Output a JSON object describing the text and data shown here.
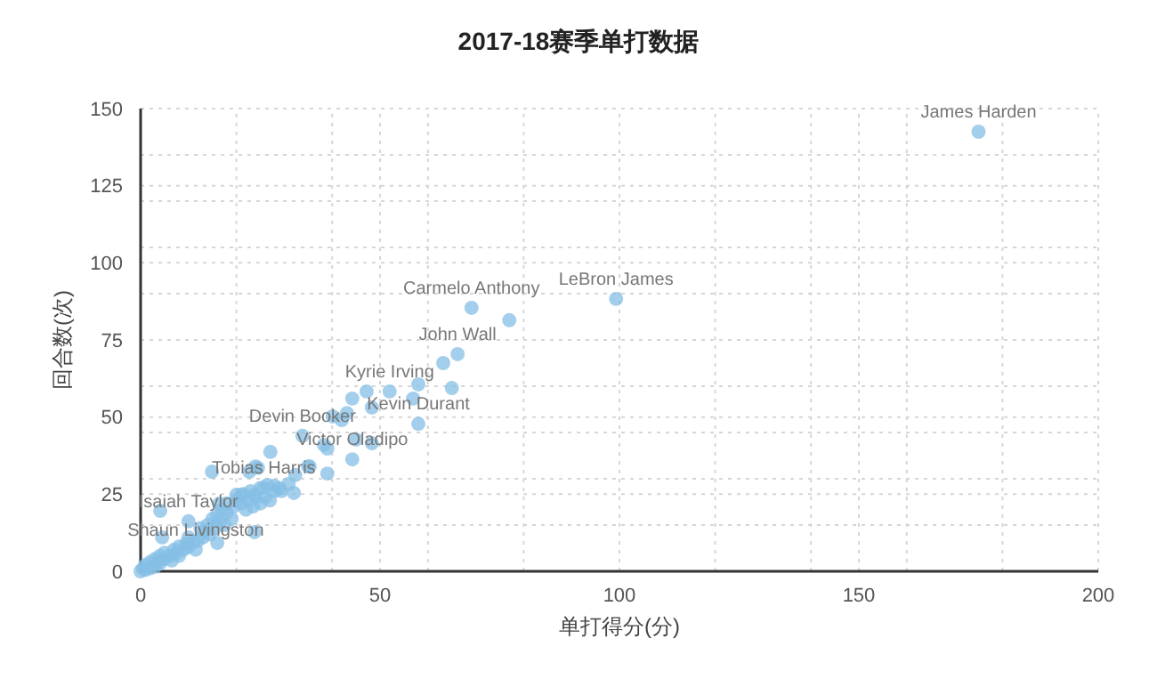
{
  "chart_data": {
    "type": "scatter",
    "title": "2017-18赛季单打数据",
    "xlabel": "单打得分(分)",
    "ylabel": "回合数(次)",
    "xlim": [
      0,
      200
    ],
    "ylim": [
      0,
      150
    ],
    "xticks": [
      0,
      {
        "value": 20,
        "label": null
      },
      {
        "value": 40,
        "label": null
      },
      50,
      {
        "value": 60,
        "label": null
      },
      {
        "value": 80,
        "label": null
      },
      100,
      {
        "value": 120,
        "label": null
      },
      {
        "value": 140,
        "label": null
      },
      150,
      {
        "value": 160,
        "label": null
      },
      {
        "value": 180,
        "label": null
      },
      200
    ],
    "yticks": [
      0,
      {
        "value": 15,
        "label": null
      },
      25,
      {
        "value": 30,
        "label": null
      },
      {
        "value": 45,
        "label": null
      },
      50,
      {
        "value": 60,
        "label": null
      },
      75,
      {
        "value": 90,
        "label": null
      },
      100,
      {
        "value": 105,
        "label": null
      },
      {
        "value": 120,
        "label": null
      },
      125,
      {
        "value": 135,
        "label": null
      },
      150
    ],
    "grid": true,
    "marker": "circle",
    "series": [
      {
        "color": "#86bfe6",
        "x": [
          175,
          99.3,
          69.1,
          77,
          63.2,
          66.2,
          58,
          47.2,
          52,
          56.9,
          65,
          48.3,
          58,
          48.3,
          44.2,
          43.1,
          40.1,
          42,
          33.8,
          45,
          38.3,
          39,
          27.1,
          44.2,
          35,
          39,
          24,
          22.7,
          32.3,
          30.9,
          27.9,
          25.7,
          32,
          29.4,
          21,
          23.8,
          14.9,
          24.5,
          35.3,
          4.1,
          10,
          16.4,
          20,
          23.8,
          16,
          4.5,
          11.5,
          0,
          0.5,
          1,
          1,
          2,
          2,
          3,
          3,
          3.5,
          4,
          4,
          5,
          5,
          6,
          6.5,
          7,
          7.5,
          8,
          8,
          9,
          9.5,
          10,
          10,
          11,
          12,
          12.5,
          13,
          13.5,
          14,
          14.5,
          15,
          15.5,
          16,
          16.5,
          17,
          17.5,
          18,
          18,
          19,
          19.5,
          20,
          21,
          21.5,
          22,
          22.5,
          23,
          23.5,
          24,
          25,
          25,
          26,
          26.5,
          27,
          28,
          29
        ],
        "values": [
          142.5,
          88.3,
          85.4,
          81.4,
          67.5,
          70.4,
          60.6,
          58.3,
          58.3,
          56,
          59.4,
          53.1,
          47.8,
          41.5,
          56,
          51.3,
          50.2,
          49,
          43.9,
          42.7,
          41,
          39.8,
          38.7,
          36.3,
          34,
          31.7,
          34,
          32.3,
          31.2,
          28.3,
          27.7,
          27.1,
          25.4,
          26,
          24.8,
          24.8,
          32.3,
          33.5,
          34,
          19.6,
          16.2,
          21.9,
          24.8,
          12.7,
          9.2,
          11,
          7,
          0,
          1,
          0.5,
          2,
          3,
          1,
          4,
          1.5,
          3,
          5,
          2.5,
          4,
          6,
          5,
          3.5,
          7,
          6,
          8,
          5,
          7,
          9,
          8,
          11,
          9.5,
          10,
          14,
          11,
          13,
          15,
          12,
          17,
          14,
          18,
          16,
          20,
          15,
          22,
          19,
          17,
          21,
          23,
          22,
          25,
          20,
          23,
          26,
          21,
          24,
          22,
          27,
          24,
          28,
          23,
          26,
          27
        ]
      }
    ],
    "annotations": [
      {
        "text": "James Harden",
        "x": 175,
        "y": 142.5
      },
      {
        "text": "LeBron James",
        "x": 99.3,
        "y": 88.3
      },
      {
        "text": "Carmelo Anthony",
        "x": 69.1,
        "y": 85.4
      },
      {
        "text": "John Wall",
        "x": 66.2,
        "y": 70.4
      },
      {
        "text": "Kyrie Irving",
        "x": 52,
        "y": 58.3
      },
      {
        "text": "Kevin Durant",
        "x": 58,
        "y": 47.8
      },
      {
        "text": "Devin Booker",
        "x": 33.8,
        "y": 43.9
      },
      {
        "text": "Victor Oladipo",
        "x": 44.2,
        "y": 36.3
      },
      {
        "text": "Tobias Harris",
        "x": 25.7,
        "y": 27.1
      },
      {
        "text": "Isaiah Taylor",
        "x": 10,
        "y": 16.2
      },
      {
        "text": "Shaun Livingston",
        "x": 11.5,
        "y": 7
      }
    ]
  }
}
